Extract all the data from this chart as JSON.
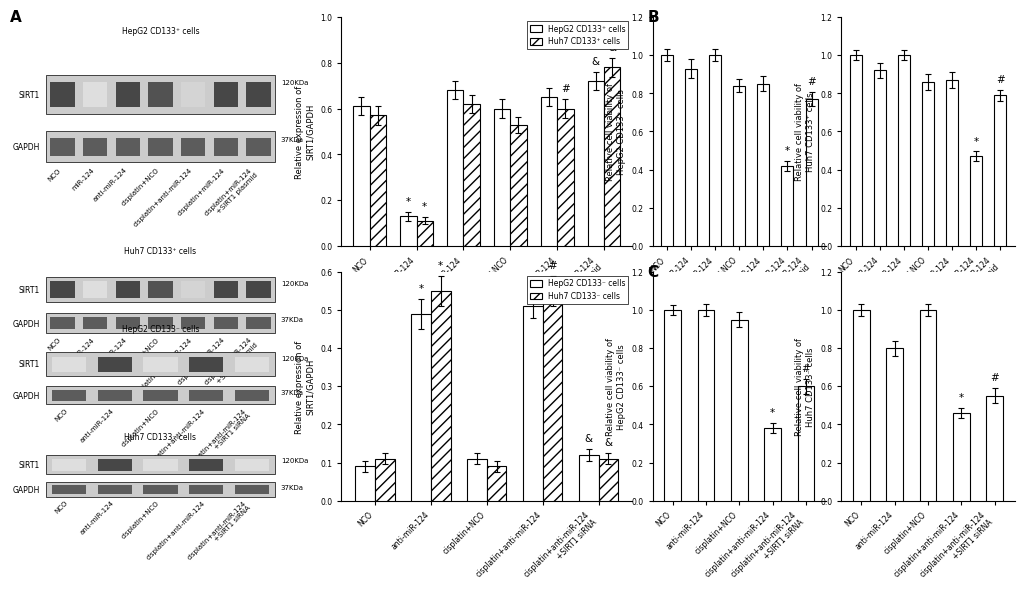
{
  "panel_A_top": {
    "ylabel": "Relative expression of\nSIRT1/GAPDH",
    "ylim": [
      0,
      1.0
    ],
    "yticks": [
      0.0,
      0.2,
      0.4,
      0.6,
      0.8,
      1.0
    ],
    "legend": [
      "HepG2 CD133⁺ cells",
      "Huh7 CD133⁺ cells"
    ],
    "groups": [
      "NCO",
      "miR-124",
      "anti-miR-124",
      "cisplatin+NCO",
      "cisplatin+miR-124",
      "cisplatin+miR-124\n+SIRT1 plasmid"
    ],
    "hepg2_values": [
      0.61,
      0.13,
      0.68,
      0.6,
      0.65,
      0.72
    ],
    "huh7_values": [
      0.57,
      0.11,
      0.62,
      0.53,
      0.6,
      0.78
    ],
    "hepg2_errors": [
      0.04,
      0.02,
      0.04,
      0.04,
      0.04,
      0.04
    ],
    "huh7_errors": [
      0.04,
      0.015,
      0.04,
      0.035,
      0.04,
      0.04
    ],
    "annotations_hepg2": [
      "",
      "*",
      "",
      "",
      "",
      "&"
    ],
    "annotations_huh7": [
      "",
      "*",
      "",
      "",
      "#",
      "&"
    ]
  },
  "panel_A_bottom": {
    "ylabel": "Relative expression of\nSIRT1/GAPDH",
    "ylim": [
      0,
      0.6
    ],
    "yticks": [
      0.0,
      0.1,
      0.2,
      0.3,
      0.4,
      0.5,
      0.6
    ],
    "legend": [
      "HepG2 CD133⁻ cells",
      "Huh7 CD133⁻ cells"
    ],
    "groups": [
      "NCO",
      "anti-miR-124",
      "cisplatin+NCO",
      "cisplatin+anti-miR-124",
      "cisplatin+anti-miR-124\n+SIRT1 siRNA"
    ],
    "hepg2_values": [
      0.09,
      0.49,
      0.11,
      0.51,
      0.12
    ],
    "huh7_values": [
      0.11,
      0.55,
      0.09,
      0.55,
      0.11
    ],
    "hepg2_errors": [
      0.015,
      0.04,
      0.015,
      0.03,
      0.015
    ],
    "huh7_errors": [
      0.015,
      0.04,
      0.015,
      0.04,
      0.015
    ],
    "annotations_hepg2": [
      "",
      "*",
      "",
      "#",
      "&"
    ],
    "annotations_huh7": [
      "",
      "*",
      "",
      "#",
      "&"
    ]
  },
  "panel_B_left": {
    "ylabel": "Relative cell viability of\nHepG2 CD133⁺ cells",
    "ylim": [
      0.0,
      1.2
    ],
    "yticks": [
      0.0,
      0.2,
      0.4,
      0.6,
      0.8,
      1.0,
      1.2
    ],
    "groups": [
      "NCO",
      "miR-124",
      "anti-miR-124",
      "cisplatin+NCO",
      "cisplatin+anti-miR-124",
      "cisplatin+miR-124",
      "cisplatin+miR-124\n+SIRT1 plasmid"
    ],
    "values": [
      1.0,
      0.93,
      1.0,
      0.84,
      0.85,
      0.42,
      0.77
    ],
    "errors": [
      0.03,
      0.05,
      0.03,
      0.035,
      0.04,
      0.025,
      0.035
    ],
    "annotations": [
      "",
      "",
      "",
      "",
      "",
      "*",
      "#"
    ]
  },
  "panel_B_right": {
    "ylabel": "Relative cell viability of\nHuh7 CD133⁺ cells",
    "ylim": [
      0.0,
      1.2
    ],
    "yticks": [
      0.0,
      0.2,
      0.4,
      0.6,
      0.8,
      1.0,
      1.2
    ],
    "groups": [
      "NCO",
      "miR-124",
      "anti-miR-124",
      "cisplatin+NCO",
      "cisplatin+anti-miR-124",
      "cisplatin+miR-124",
      "cisplatin+miR-124\n+SIRT1 plasmid"
    ],
    "values": [
      1.0,
      0.92,
      1.0,
      0.86,
      0.87,
      0.47,
      0.79
    ],
    "errors": [
      0.025,
      0.04,
      0.025,
      0.04,
      0.04,
      0.025,
      0.03
    ],
    "annotations": [
      "",
      "",
      "",
      "",
      "",
      "*",
      "#"
    ]
  },
  "panel_C_left": {
    "ylabel": "Relative cell viability of\nHepG2 CD133⁻ cells",
    "ylim": [
      0.0,
      1.2
    ],
    "yticks": [
      0.0,
      0.2,
      0.4,
      0.6,
      0.8,
      1.0,
      1.2
    ],
    "groups": [
      "NCO",
      "anti-miR-124",
      "cisplatin+NCO",
      "cisplatin+anti-miR-124",
      "cisplatin+anti-miR-124\n+SIRT1 siRNA"
    ],
    "values": [
      1.0,
      1.0,
      0.95,
      0.38,
      0.6
    ],
    "errors": [
      0.025,
      0.03,
      0.04,
      0.025,
      0.04
    ],
    "annotations": [
      "",
      "",
      "",
      "*",
      "#"
    ]
  },
  "panel_C_right": {
    "ylabel": "Relative cell viability of\nHuh7 CD133⁻ cells",
    "ylim": [
      0.0,
      1.2
    ],
    "yticks": [
      0.0,
      0.2,
      0.4,
      0.6,
      0.8,
      1.0,
      1.2
    ],
    "groups": [
      "NCO",
      "anti-miR-124",
      "cisplatin+NCO",
      "cisplatin+anti-miR-124",
      "cisplatin+anti-miR-124\n+SIRT1 siRNA"
    ],
    "values": [
      1.0,
      0.8,
      1.0,
      0.46,
      0.55
    ],
    "errors": [
      0.03,
      0.04,
      0.03,
      0.025,
      0.04
    ],
    "annotations": [
      "",
      "",
      "",
      "*",
      "#"
    ]
  },
  "blot_top_plus": {
    "title": "HepG2 CD133⁺ cells",
    "labels": [
      "NCO",
      "miR-124",
      "anti-miR-124",
      "cisplatin+NCO",
      "cisplatin+anti-miR-124",
      "cisplatin+miR-124",
      "cisplatin+miR-124\n+SIRT1 plasmid"
    ],
    "sirt1_intensity": [
      0.85,
      0.15,
      0.85,
      0.8,
      0.2,
      0.85,
      0.85
    ],
    "gapdh_intensity": [
      0.85,
      0.85,
      0.85,
      0.85,
      0.85,
      0.85,
      0.85
    ]
  },
  "blot_mid_plus": {
    "title": "Huh7 CD133⁺ cells",
    "labels": [
      "NCO",
      "miR-124",
      "anti-miR-124",
      "cisplatin+NCO",
      "cisplatin+anti-miR-124",
      "cisplatin+miR-124",
      "cisplatin+miR-124\n+SIRT1 plasmid"
    ],
    "sirt1_intensity": [
      0.85,
      0.15,
      0.85,
      0.8,
      0.2,
      0.85,
      0.85
    ],
    "gapdh_intensity": [
      0.85,
      0.85,
      0.85,
      0.85,
      0.85,
      0.85,
      0.85
    ]
  },
  "blot_top_minus": {
    "title": "HepG2 CD133⁻ cells",
    "labels": [
      "NCO",
      "anti-miR-124",
      "cisplatin+NCO",
      "cisplatin+anti-miR-124",
      "cisplatin+anti-miR-124\n+SIRT1 siRNA"
    ],
    "sirt1_intensity": [
      0.15,
      0.85,
      0.15,
      0.85,
      0.15
    ],
    "gapdh_intensity": [
      0.85,
      0.85,
      0.85,
      0.85,
      0.85
    ]
  },
  "blot_bot_minus": {
    "title": "Huh7 CD133⁻ cells",
    "labels": [
      "NCO",
      "anti-miR-124",
      "cisplatin+NCO",
      "cisplatin+anti-miR-124",
      "cisplatin+anti-miR-124\n+SIRT1 siRNA"
    ],
    "sirt1_intensity": [
      0.15,
      0.85,
      0.15,
      0.85,
      0.15
    ],
    "gapdh_intensity": [
      0.85,
      0.85,
      0.85,
      0.85,
      0.85
    ]
  },
  "bar_color_white": "#ffffff",
  "bar_hatch": "///",
  "bar_edgecolor": "#000000",
  "fontsize_tick": 5.5,
  "fontsize_label": 6.0,
  "fontsize_legend": 5.5,
  "fontsize_annot": 7.5,
  "fontsize_blot": 5.5
}
